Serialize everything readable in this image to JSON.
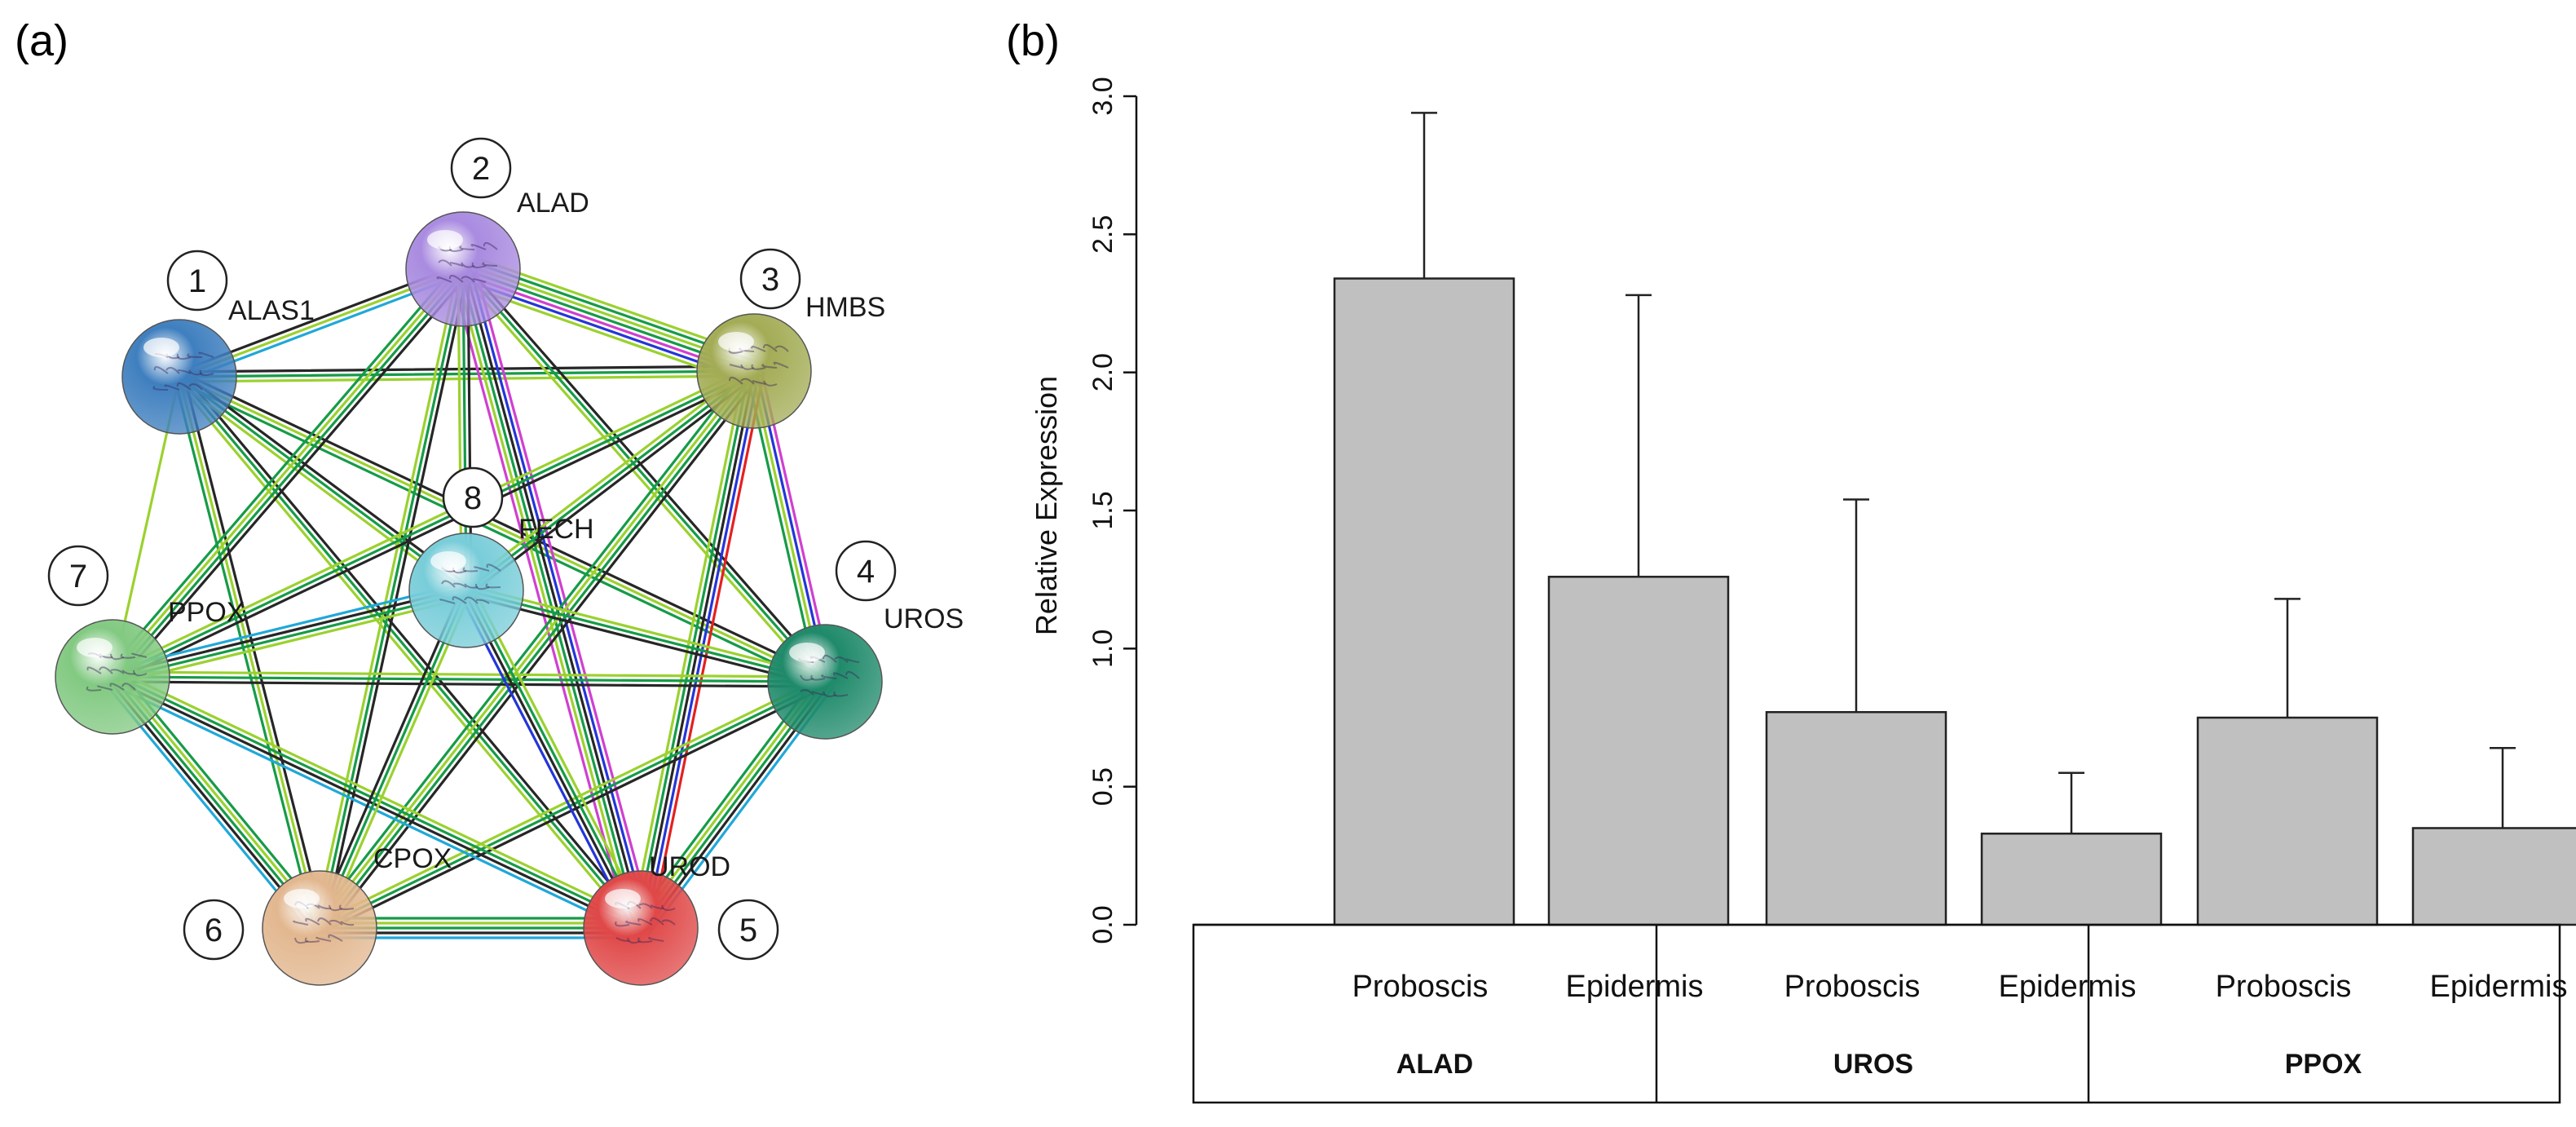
{
  "panel_a": {
    "label": "(a)",
    "nodes": [
      {
        "num": "1",
        "name": "ALAS1",
        "color": "#3f7fbf"
      },
      {
        "num": "2",
        "name": "ALAD",
        "color": "#a98be0"
      },
      {
        "num": "3",
        "name": "HMBS",
        "color": "#a3ac55"
      },
      {
        "num": "4",
        "name": "UROS",
        "color": "#1f8a6a"
      },
      {
        "num": "5",
        "name": "UROD",
        "color": "#e04848"
      },
      {
        "num": "6",
        "name": "CPOX",
        "color": "#e2b78f"
      },
      {
        "num": "7",
        "name": "PPOX",
        "color": "#82c982"
      },
      {
        "num": "8",
        "name": "FECH",
        "color": "#78cdd9"
      }
    ]
  },
  "panel_b": {
    "label": "(b)"
  },
  "chart_data": {
    "type": "bar",
    "ylabel": "Relative Expression",
    "xlabel": "",
    "ylim": [
      0,
      3.0
    ],
    "yticks": [
      "0.0",
      "0.5",
      "1.0",
      "1.5",
      "2.0",
      "2.5",
      "3.0"
    ],
    "categories": [
      "Proboscis",
      "Epidermis",
      "Proboscis",
      "Epidermis",
      "Proboscis",
      "Epidermis"
    ],
    "groups": [
      "ALAD",
      "UROS",
      "PPOX"
    ],
    "values": [
      2.34,
      1.26,
      0.77,
      0.33,
      0.75,
      0.35
    ],
    "error_upper": [
      2.94,
      2.28,
      1.54,
      0.55,
      1.18,
      0.64
    ],
    "bar_color": "#c0c0c0"
  }
}
